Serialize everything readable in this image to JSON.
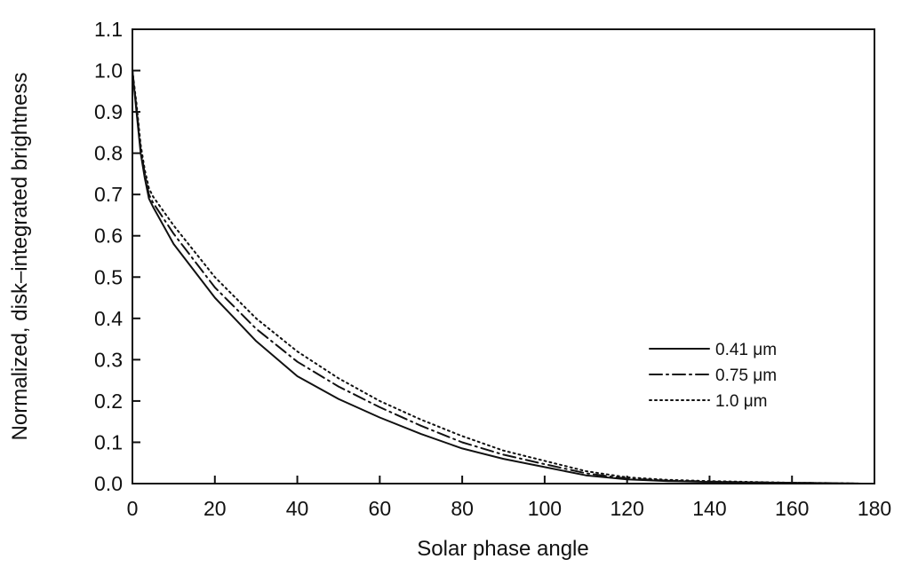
{
  "chart_data": {
    "type": "line",
    "xlabel": "Solar phase angle",
    "ylabel": "Normalized, disk–integrated brightness",
    "xlim": [
      0,
      180
    ],
    "ylim": [
      0,
      1.1
    ],
    "xticks": [
      "0",
      "20",
      "40",
      "60",
      "80",
      "100",
      "120",
      "140",
      "160",
      "180"
    ],
    "yticks": [
      "0.0",
      "0.1",
      "0.2",
      "0.3",
      "0.4",
      "0.5",
      "0.6",
      "0.7",
      "0.8",
      "0.9",
      "1.0",
      "1.1"
    ],
    "grid": false,
    "legend_position": "right",
    "series": [
      {
        "name": "0.41 μm",
        "style": "solid",
        "x": [
          0,
          1,
          2,
          3,
          4,
          5,
          10,
          20,
          30,
          40,
          50,
          60,
          70,
          80,
          90,
          100,
          110,
          120,
          130,
          140,
          150,
          160,
          170,
          177
        ],
        "y": [
          1.0,
          0.9,
          0.8,
          0.74,
          0.69,
          0.67,
          0.58,
          0.45,
          0.345,
          0.26,
          0.205,
          0.16,
          0.12,
          0.085,
          0.06,
          0.04,
          0.02,
          0.01,
          0.006,
          0.004,
          0.003,
          0.002,
          0.001,
          0.0
        ]
      },
      {
        "name": "0.75 μm",
        "style": "dashdot",
        "x": [
          0,
          1,
          2,
          3,
          4,
          5,
          10,
          20,
          30,
          40,
          50,
          60,
          70,
          80,
          90,
          100,
          110,
          120,
          130,
          140,
          150,
          160,
          170,
          177
        ],
        "y": [
          1.0,
          0.91,
          0.81,
          0.75,
          0.7,
          0.68,
          0.605,
          0.475,
          0.375,
          0.295,
          0.235,
          0.185,
          0.14,
          0.1,
          0.07,
          0.047,
          0.025,
          0.012,
          0.007,
          0.005,
          0.003,
          0.002,
          0.001,
          0.0
        ]
      },
      {
        "name": "1.0 μm",
        "style": "dotted",
        "x": [
          0,
          1,
          2,
          3,
          4,
          5,
          10,
          20,
          30,
          40,
          50,
          60,
          70,
          80,
          90,
          100,
          110,
          120,
          130,
          140,
          150,
          160,
          170,
          177
        ],
        "y": [
          1.0,
          0.92,
          0.82,
          0.76,
          0.715,
          0.695,
          0.625,
          0.5,
          0.4,
          0.32,
          0.255,
          0.2,
          0.155,
          0.115,
          0.08,
          0.055,
          0.03,
          0.015,
          0.009,
          0.006,
          0.004,
          0.002,
          0.001,
          0.0
        ]
      }
    ]
  }
}
